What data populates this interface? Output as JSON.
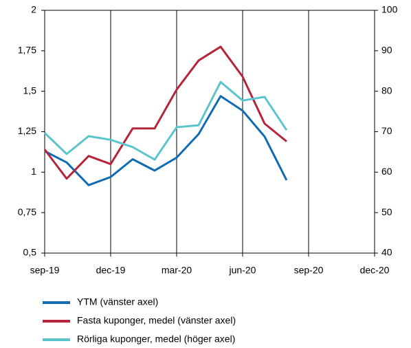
{
  "chart_data": {
    "type": "line",
    "categories": [
      "sep-19",
      null,
      null,
      "dec-19",
      null,
      null,
      "mar-20",
      null,
      null,
      "jun-20",
      null,
      null,
      "sep-20",
      null,
      null,
      "dec-20"
    ],
    "series": [
      {
        "name": "YTM (vänster axel)",
        "color": "#0f6cb2",
        "values": [
          1.13,
          1.06,
          0.92,
          0.97,
          1.08,
          1.01,
          1.09,
          1.235,
          1.47,
          1.38,
          1.22,
          0.95,
          null,
          null,
          null,
          null
        ]
      },
      {
        "name": "Fasta kuponger, medel (vänster axel)",
        "color": "#b5253a",
        "values": [
          1.14,
          0.96,
          1.1,
          1.05,
          1.27,
          1.27,
          1.51,
          1.69,
          1.775,
          1.59,
          1.3,
          1.19,
          null,
          null,
          null,
          null
        ]
      },
      {
        "name": "Rörliga kuponger, medel (höger axel)",
        "color": "#5bc4cc",
        "axis": "y2",
        "values": [
          69.7,
          64.5,
          68.9,
          68.0,
          66.2,
          63.1,
          71.1,
          71.6,
          82.3,
          77.7,
          78.6,
          70.4,
          null,
          null,
          null,
          null
        ]
      }
    ],
    "ylim": [
      0.5,
      2
    ],
    "yticks": [
      {
        "value": 0.5,
        "label": "0,5"
      },
      {
        "value": 0.75,
        "label": "0,75"
      },
      1,
      {
        "value": 1.25,
        "label": "1,25"
      },
      {
        "value": 1.5,
        "label": "1,5"
      },
      {
        "value": 1.75,
        "label": "1,75"
      },
      2
    ],
    "y2lim": [
      40,
      100
    ],
    "y2ticks": [
      40,
      50,
      60,
      70,
      80,
      90,
      100
    ],
    "legend": "bottom"
  }
}
